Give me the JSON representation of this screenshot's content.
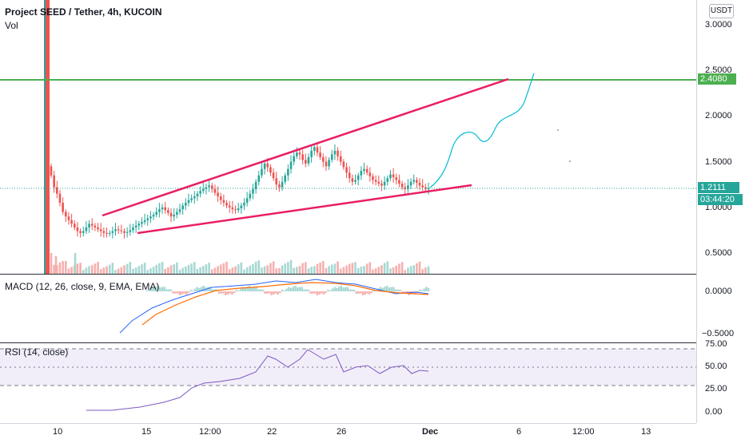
{
  "header": {
    "symbol_title": "Project SEED / Tether, 4h, KUCOIN",
    "vol_label": "Vol"
  },
  "macd": {
    "legend": "MACD (12, 26, close, 9, EMA, EMA)"
  },
  "rsi": {
    "legend": "RSI (14, close)"
  },
  "price_axis": {
    "currency": "USDT",
    "ticks": [
      "3.0000",
      "2.5000",
      "2.0000",
      "1.5000",
      "1.0000",
      "0.5000"
    ],
    "macd_ticks": [
      "0.0000",
      "−0.5000"
    ],
    "rsi_ticks": [
      "75.00",
      "50.00",
      "25.00",
      "0.00"
    ]
  },
  "markers": {
    "target_price": "2.4080",
    "last_price": "1.2111",
    "countdown": "03:44:20"
  },
  "time_axis": {
    "ticks": [
      "10",
      "15",
      "12:00",
      "22",
      "26",
      "Dec",
      "6",
      "12:00",
      "13"
    ]
  },
  "colors": {
    "bull": "#26a69a",
    "bear": "#ef5350",
    "target_line": "#4caf50",
    "wedge": "#e91e63",
    "projection": "#00bcd4",
    "macd_line": "#2962ff",
    "signal_line": "#ff6d00",
    "rsi_line": "#7e57c2",
    "rsi_band": "#7e57c2"
  },
  "chart_data": {
    "type": "candlestick",
    "symbol": "Project SEED / Tether, 4h, KUCOIN",
    "x_ticks": [
      "10",
      "15",
      "12:00",
      "22",
      "26",
      "Dec",
      "6",
      "12:00",
      "13"
    ],
    "y_ticks": [
      3.0,
      2.5,
      2.0,
      1.5,
      1.0,
      0.5
    ],
    "ylim": [
      0.25,
      3.2
    ],
    "close": [
      1.35,
      1.22,
      1.15,
      1.05,
      0.95,
      0.9,
      0.86,
      0.82,
      0.78,
      0.74,
      0.72,
      0.74,
      0.78,
      0.82,
      0.8,
      0.78,
      0.76,
      0.74,
      0.72,
      0.71,
      0.72,
      0.74,
      0.76,
      0.75,
      0.74,
      0.72,
      0.73,
      0.75,
      0.78,
      0.8,
      0.82,
      0.84,
      0.86,
      0.88,
      0.9,
      0.92,
      0.95,
      0.98,
      1.0,
      0.97,
      0.94,
      0.9,
      0.92,
      0.95,
      0.98,
      1.02,
      1.05,
      1.08,
      1.1,
      1.12,
      1.15,
      1.18,
      1.2,
      1.22,
      1.24,
      1.2,
      1.16,
      1.12,
      1.08,
      1.05,
      1.02,
      1.0,
      0.98,
      0.97,
      0.99,
      1.02,
      1.05,
      1.1,
      1.15,
      1.2,
      1.28,
      1.35,
      1.42,
      1.48,
      1.44,
      1.38,
      1.32,
      1.25,
      1.22,
      1.28,
      1.35,
      1.42,
      1.5,
      1.56,
      1.6,
      1.58,
      1.52,
      1.48,
      1.55,
      1.62,
      1.66,
      1.6,
      1.55,
      1.5,
      1.45,
      1.52,
      1.58,
      1.62,
      1.56,
      1.5,
      1.44,
      1.38,
      1.32,
      1.28,
      1.3,
      1.35,
      1.4,
      1.42,
      1.38,
      1.34,
      1.3,
      1.28,
      1.26,
      1.24,
      1.28,
      1.32,
      1.36,
      1.33,
      1.3,
      1.26,
      1.22,
      1.2,
      1.24,
      1.28,
      1.3,
      1.27,
      1.24,
      1.22,
      1.2,
      1.21
    ],
    "target_level": 2.408,
    "last_price": 1.2111
  }
}
